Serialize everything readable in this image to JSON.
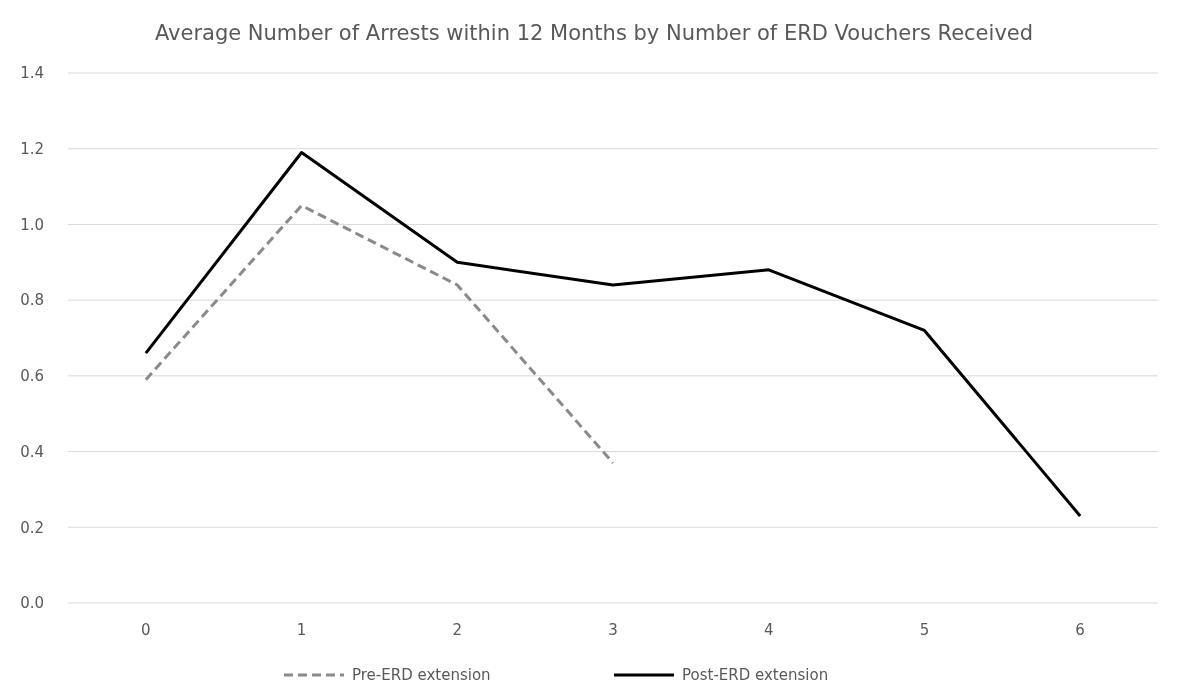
{
  "chart_data": {
    "type": "line",
    "title": "Average Number of Arrests within 12 Months by Number of ERD Vouchers Received",
    "categories": [
      "0",
      "1",
      "2",
      "3",
      "4",
      "5",
      "6"
    ],
    "series": [
      {
        "name": "Pre-ERD extension",
        "color": "#8a8a8a",
        "line_style": "dashed",
        "values": [
          0.59,
          1.05,
          0.84,
          0.37,
          null,
          null,
          null
        ]
      },
      {
        "name": "Post-ERD extension",
        "color": "#000000",
        "line_style": "solid",
        "values": [
          0.66,
          1.19,
          0.9,
          0.84,
          0.88,
          0.72,
          0.23
        ]
      }
    ],
    "ylim": [
      0,
      1.4
    ],
    "yticks": [
      {
        "value": 0,
        "label": "0.0"
      },
      {
        "value": 0.2,
        "label": "0.2"
      },
      {
        "value": 0.4,
        "label": "0.4"
      },
      {
        "value": 0.6,
        "label": "0.6"
      },
      {
        "value": 0.8,
        "label": "0.8"
      },
      {
        "value": 1,
        "label": "1.0"
      },
      {
        "value": 1.2,
        "label": "1.2"
      },
      {
        "value": 1.4,
        "label": "1.4"
      }
    ],
    "grid": "y",
    "legend": "bottom",
    "marker": "none"
  }
}
